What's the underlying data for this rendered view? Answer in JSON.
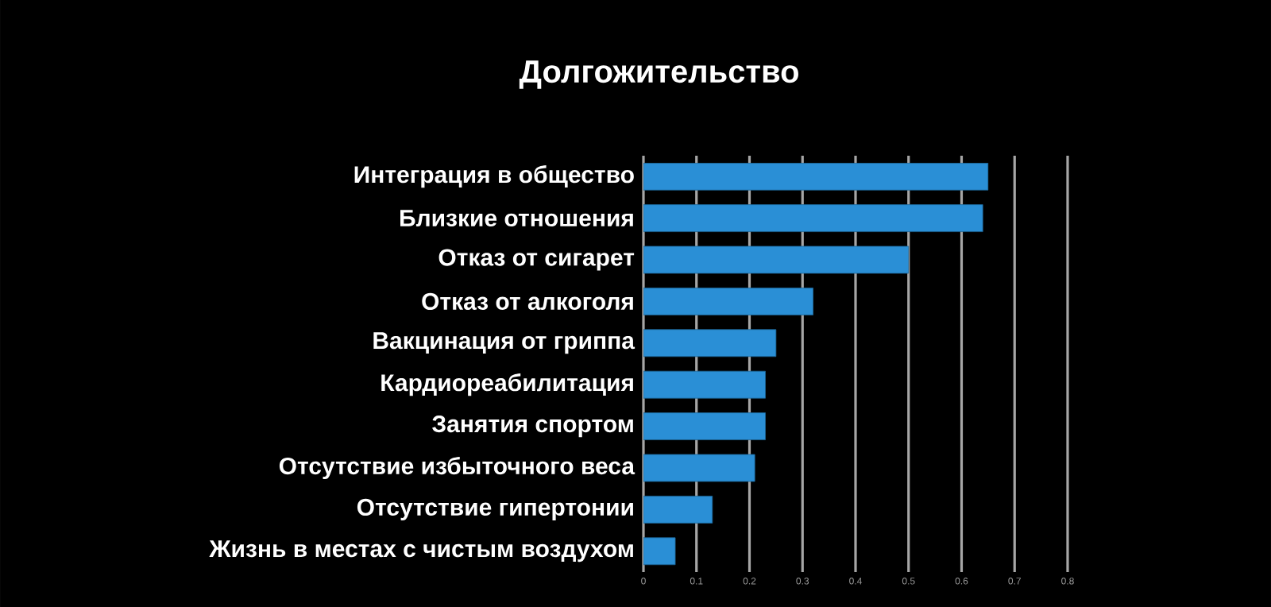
{
  "chart_data": {
    "type": "bar",
    "orientation": "horizontal",
    "title": "Долгожительство",
    "categories": [
      "Интеграция в общество",
      "Близкие отношения",
      "Отказ от сигарет",
      "Отказ от алкоголя",
      "Вакцинация от гриппа",
      "Кардиореабилитация",
      "Занятия спортом",
      "Отсутствие избыточного веса",
      "Отсутствие гипертонии",
      "Жизнь в  местах  с чистым воздухом"
    ],
    "values": [
      0.65,
      0.64,
      0.5,
      0.32,
      0.25,
      0.23,
      0.23,
      0.21,
      0.13,
      0.06
    ],
    "color": "#2a8fd6",
    "xlim": [
      0,
      0.8
    ],
    "xticks": [
      0,
      0.1,
      0.2,
      0.3,
      0.4,
      0.5,
      0.6,
      0.7,
      0.8
    ],
    "grid": "x"
  }
}
